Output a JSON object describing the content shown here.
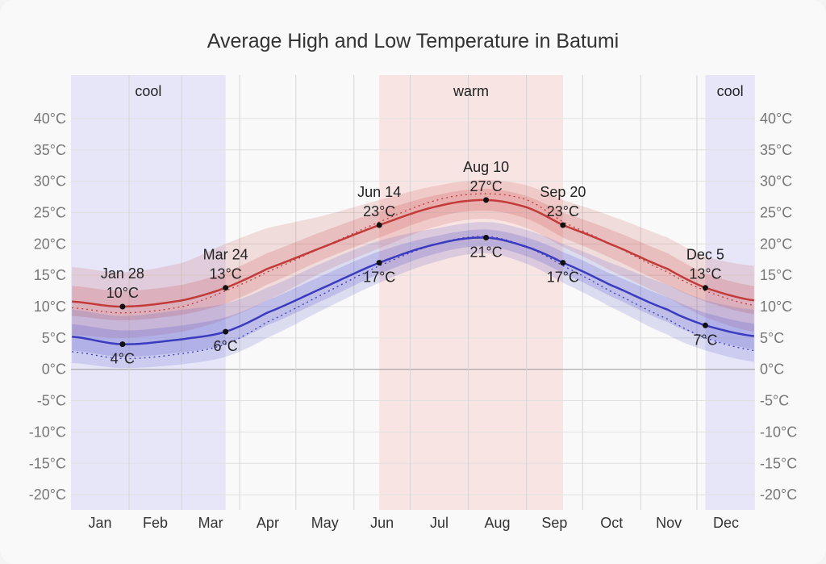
{
  "chart_data": {
    "type": "line",
    "title": "Average High and Low Temperature in Batumi",
    "ylim": [
      -20,
      40
    ],
    "yticks": [
      40,
      35,
      30,
      25,
      20,
      15,
      10,
      5,
      0,
      -5,
      -10,
      -15,
      -20
    ],
    "ytick_labels": [
      "40°C",
      "35°C",
      "30°C",
      "25°C",
      "20°C",
      "15°C",
      "10°C",
      "5°C",
      "0°C",
      "-5°C",
      "-10°C",
      "-15°C",
      "-20°C"
    ],
    "xtick_labels": [
      "Jan",
      "Feb",
      "Mar",
      "Apr",
      "May",
      "Jun",
      "Jul",
      "Aug",
      "Sep",
      "Oct",
      "Nov",
      "Dec"
    ],
    "grid": true,
    "seasons": [
      {
        "label": "cool",
        "start": "Jan 1",
        "end": "Mar 24",
        "color": "#e6e6f8"
      },
      {
        "label": "warm",
        "start": "Jun 14",
        "end": "Sep 20",
        "color": "#f8e4e2"
      },
      {
        "label": "cool",
        "start": "Dec 5",
        "end": "Dec 31",
        "color": "#e6e6f8"
      }
    ],
    "x": [
      "Jan 1",
      "Jan 28",
      "Mar 1",
      "Mar 24",
      "Apr 15",
      "May 15",
      "Jun 14",
      "Jul 15",
      "Aug 10",
      "Sep 1",
      "Sep 20",
      "Oct 15",
      "Nov 15",
      "Dec 5",
      "Dec 31"
    ],
    "series": [
      {
        "key": "high",
        "color": "#c23b3b",
        "values": [
          10.8,
          10,
          11,
          13,
          16,
          19.5,
          23,
          26,
          27,
          25.8,
          23,
          20,
          16,
          13,
          11
        ],
        "perceived": [
          9.8,
          9,
          10,
          12.5,
          15.5,
          19.5,
          23.5,
          27,
          28,
          27,
          23.5,
          20,
          15.5,
          12.5,
          10.2
        ],
        "p25": [
          8.5,
          7.8,
          8.7,
          10.5,
          13.5,
          17.5,
          21,
          24.3,
          25.3,
          24,
          21,
          17.8,
          13.5,
          10.8,
          8.8
        ],
        "p75": [
          13.3,
          12.5,
          13.5,
          15.5,
          18.5,
          22,
          25.2,
          27.8,
          28.8,
          27.6,
          25,
          22.3,
          18.5,
          15.3,
          13.3
        ],
        "p10": [
          5.5,
          5,
          6,
          8,
          11,
          15.5,
          19.3,
          22.8,
          24,
          22.5,
          19.5,
          15.8,
          11.5,
          8.3,
          6
        ],
        "p90": [
          16.3,
          15.5,
          17,
          20,
          22.5,
          24.5,
          27,
          29.3,
          30.2,
          29.3,
          27,
          24.5,
          21,
          18,
          16.5
        ]
      },
      {
        "key": "low",
        "color": "#3b3bbf",
        "values": [
          5.2,
          4,
          4.8,
          6,
          9,
          13,
          17,
          20,
          21,
          19.5,
          17,
          13.5,
          9.5,
          7,
          5.3
        ],
        "perceived": [
          2.8,
          1.7,
          2.5,
          4,
          7.5,
          12,
          16.5,
          20,
          21.2,
          19.5,
          16.5,
          12.5,
          8,
          5,
          3
        ],
        "p25": [
          3,
          2,
          2.7,
          4,
          7,
          11,
          15.2,
          18.5,
          19.6,
          18,
          15.3,
          11.7,
          7.5,
          5,
          3.2
        ],
        "p75": [
          7.2,
          6.2,
          7,
          8.3,
          11,
          15,
          18.8,
          21.3,
          22.3,
          21,
          18.7,
          15.3,
          11.5,
          9,
          7.3
        ],
        "p10": [
          1,
          0.2,
          0.8,
          2,
          5,
          9.5,
          13.8,
          17.2,
          18.5,
          16.8,
          13.8,
          10,
          5.5,
          3,
          1.2
        ],
        "p90": [
          9.5,
          8.5,
          9.5,
          10.5,
          13,
          17,
          20.5,
          22.5,
          23.5,
          22.2,
          20,
          17,
          13.5,
          11,
          9.5
        ]
      }
    ],
    "annotations": [
      {
        "date": "Jan 28",
        "high": "10°C",
        "low": "4°C",
        "hv": 10,
        "lv": 4
      },
      {
        "date": "Mar 24",
        "high": "13°C",
        "low": "6°C",
        "hv": 13,
        "lv": 6
      },
      {
        "date": "Jun 14",
        "high": "23°C",
        "low": "17°C",
        "hv": 23,
        "lv": 17
      },
      {
        "date": "Aug 10",
        "high": "27°C",
        "low": "21°C",
        "hv": 27,
        "lv": 21
      },
      {
        "date": "Sep 20",
        "high": "23°C",
        "low": "17°C",
        "hv": 23,
        "lv": 17
      },
      {
        "date": "Dec 5",
        "high": "13°C",
        "low": "7°C",
        "hv": 13,
        "lv": 7
      }
    ]
  }
}
